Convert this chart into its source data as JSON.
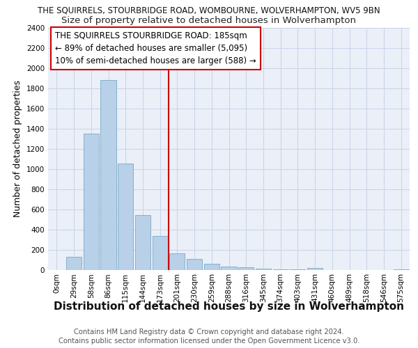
{
  "title": "THE SQUIRRELS, STOURBRIDGE ROAD, WOMBOURNE, WOLVERHAMPTON, WV5 9BN",
  "subtitle": "Size of property relative to detached houses in Wolverhampton",
  "xlabel": "Distribution of detached houses by size in Wolverhampton",
  "ylabel": "Number of detached properties",
  "categories": [
    "0sqm",
    "29sqm",
    "58sqm",
    "86sqm",
    "115sqm",
    "144sqm",
    "173sqm",
    "201sqm",
    "230sqm",
    "259sqm",
    "288sqm",
    "316sqm",
    "345sqm",
    "374sqm",
    "403sqm",
    "431sqm",
    "460sqm",
    "489sqm",
    "518sqm",
    "546sqm",
    "575sqm"
  ],
  "values": [
    0,
    130,
    1350,
    1880,
    1050,
    540,
    335,
    160,
    105,
    58,
    30,
    25,
    10,
    5,
    3,
    20,
    0,
    0,
    0,
    0,
    5
  ],
  "bar_color": "#b8d0e8",
  "bar_edge_color": "#7aaac8",
  "vline_x": 6.5,
  "vline_color": "#cc0000",
  "annotation_text": "THE SQUIRRELS STOURBRIDGE ROAD: 185sqm\n← 89% of detached houses are smaller (5,095)\n10% of semi-detached houses are larger (588) →",
  "annotation_box_color": "#ffffff",
  "annotation_box_edge": "#cc0000",
  "ylim": [
    0,
    2400
  ],
  "yticks": [
    0,
    200,
    400,
    600,
    800,
    1000,
    1200,
    1400,
    1600,
    1800,
    2000,
    2200,
    2400
  ],
  "grid_color": "#c8d4e8",
  "background_color": "#eaeff8",
  "footer_line1": "Contains HM Land Registry data © Crown copyright and database right 2024.",
  "footer_line2": "Contains public sector information licensed under the Open Government Licence v3.0.",
  "title_fontsize": 8.5,
  "subtitle_fontsize": 9.5,
  "xlabel_fontsize": 11,
  "ylabel_fontsize": 9,
  "tick_fontsize": 7.5,
  "annotation_fontsize": 8.5,
  "footer_fontsize": 7.2
}
